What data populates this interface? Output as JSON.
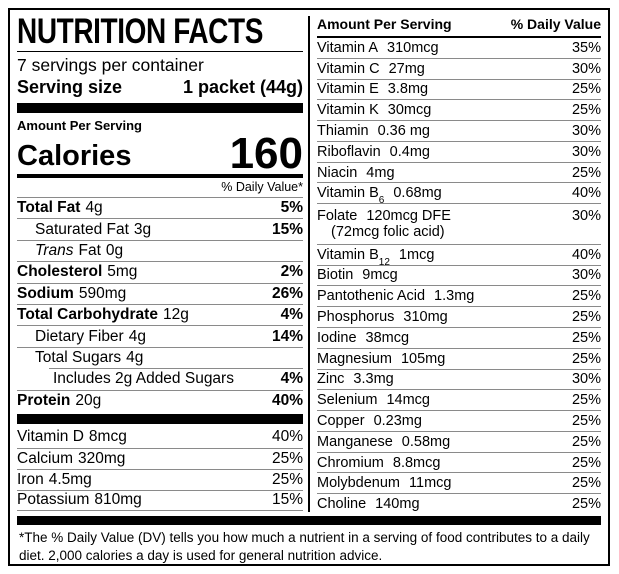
{
  "label": {
    "title": "NUTRITION FACTS",
    "servings_per_container": "7 servings per container",
    "serving_size_label": "Serving size",
    "serving_size_value": "1 packet (44g)",
    "amount_per_serving": "Amount Per Serving",
    "calories_label": "Calories",
    "calories_value": "160",
    "daily_value_header": "% Daily Value*"
  },
  "left": {
    "rows": [
      {
        "name": "Total Fat",
        "amount": "4g",
        "dv": "5%"
      },
      {
        "name": "Saturated Fat",
        "amount": "3g",
        "dv": "15%"
      },
      {
        "name_italic": "Trans",
        "name": "Fat",
        "amount": "0g",
        "dv": ""
      },
      {
        "name": "Cholesterol",
        "amount": "5mg",
        "dv": "2%"
      },
      {
        "name": "Sodium",
        "amount": "590mg",
        "dv": "26%"
      },
      {
        "name": "Total Carbohydrate",
        "amount": "12g",
        "dv": "4%"
      },
      {
        "name": "Dietary Fiber",
        "amount": "4g",
        "dv": "14%"
      },
      {
        "name": "Total Sugars",
        "amount": "4g",
        "dv": ""
      },
      {
        "name": "Includes 2g Added Sugars",
        "amount": "",
        "dv": "4%"
      },
      {
        "name": "Protein",
        "amount": "20g",
        "dv": "40%"
      }
    ],
    "vitamins": [
      {
        "name": "Vitamin D",
        "amount": "8mcg",
        "dv": "40%"
      },
      {
        "name": "Calcium",
        "amount": "320mg",
        "dv": "25%"
      },
      {
        "name": "Iron",
        "amount": "4.5mg",
        "dv": "25%"
      },
      {
        "name": "Potassium",
        "amount": "810mg",
        "dv": "15%"
      }
    ]
  },
  "right": {
    "header_amount": "Amount Per Serving",
    "header_dv": "% Daily Value",
    "rows": [
      {
        "name": "Vitamin A",
        "amount": "310mcg",
        "dv": "35%"
      },
      {
        "name": "Vitamin C",
        "amount": "27mg",
        "dv": "30%"
      },
      {
        "name": "Vitamin E",
        "amount": "3.8mg",
        "dv": "25%"
      },
      {
        "name": "Vitamin K",
        "amount": "30mcg",
        "dv": "25%"
      },
      {
        "name": "Thiamin",
        "amount": "0.36 mg",
        "dv": "30%"
      },
      {
        "name": "Riboflavin",
        "amount": "0.4mg",
        "dv": "30%"
      },
      {
        "name": "Niacin",
        "amount": "4mg",
        "dv": "25%"
      },
      {
        "name": "Vitamin B",
        "sub": "6",
        "amount": "0.68mg",
        "dv": "40%"
      },
      {
        "name": "Folate",
        "amount": "120mcg DFE",
        "dv": "30%",
        "note": "(72mcg folic acid)"
      },
      {
        "name": "Vitamin B",
        "sub": "12",
        "amount": "1mcg",
        "dv": "40%"
      },
      {
        "name": "Biotin",
        "amount": "9mcg",
        "dv": "30%"
      },
      {
        "name": "Pantothenic Acid",
        "amount": "1.3mg",
        "dv": "25%"
      },
      {
        "name": "Phosphorus",
        "amount": "310mg",
        "dv": "25%"
      },
      {
        "name": "Iodine",
        "amount": "38mcg",
        "dv": "25%"
      },
      {
        "name": "Magnesium",
        "amount": "105mg",
        "dv": "25%"
      },
      {
        "name": "Zinc",
        "amount": "3.3mg",
        "dv": "30%"
      },
      {
        "name": "Selenium",
        "amount": "14mcg",
        "dv": "25%"
      },
      {
        "name": "Copper",
        "amount": "0.23mg",
        "dv": "25%"
      },
      {
        "name": "Manganese",
        "amount": "0.58mg",
        "dv": "25%"
      },
      {
        "name": "Chromium",
        "amount": "8.8mcg",
        "dv": "25%"
      },
      {
        "name": "Molybdenum",
        "amount": "11mcg",
        "dv": "25%"
      },
      {
        "name": "Choline",
        "amount": "140mg",
        "dv": "25%"
      }
    ]
  },
  "footnote": "*The % Daily Value (DV) tells you how much a nutrient in a serving of food contributes to a daily diet. 2,000 calories a day is used for general nutrition advice.",
  "colors": {
    "text": "#000000",
    "background": "#ffffff",
    "hairline": "#8a8a8a"
  }
}
